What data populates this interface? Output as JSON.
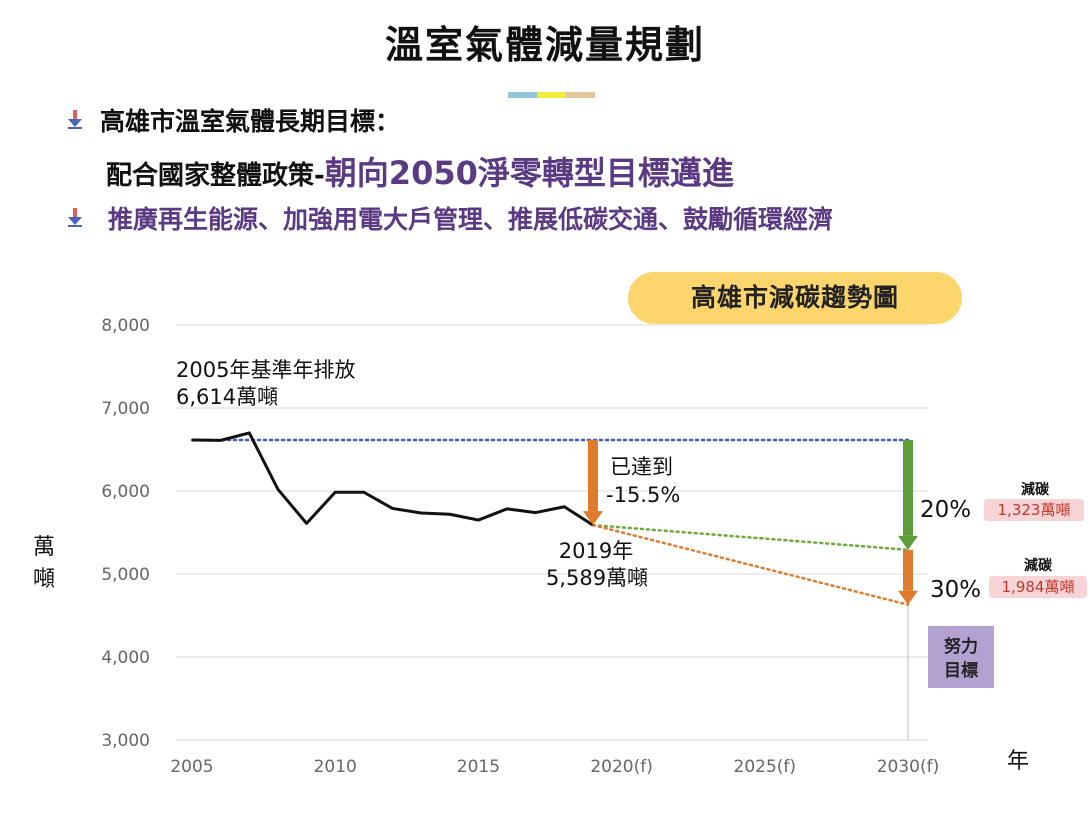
{
  "header": {
    "title": "溫室氣體減量規劃",
    "bar_colors": [
      "#93c5da",
      "#f5ec3a",
      "#e6c49d"
    ]
  },
  "bullets": {
    "line1": "高雄市溫室氣體長期目標：",
    "line2_prefix": "配合國家整體政策-",
    "line2_highlight": "朝向2050淨零轉型目標邁進",
    "line3": "推廣再生能源、加強用電大戶管理、推展低碳交通、鼓勵循環經濟",
    "icon": "down-arrow-bullet-icon"
  },
  "chart_data": {
    "type": "line",
    "title": "高雄市減碳趨勢圖",
    "ylabel": "萬\n噸",
    "ylabel_chars": [
      "萬",
      "噸"
    ],
    "xlabel": "年",
    "ylim": [
      3000,
      8000
    ],
    "yticks": [
      3000,
      4000,
      5000,
      6000,
      7000,
      8000
    ],
    "ytick_labels": [
      "3,000",
      "4,000",
      "5,000",
      "6,000",
      "7,000",
      "8,000"
    ],
    "xlim": [
      2005,
      2030
    ],
    "xticks": [
      2005,
      2010,
      2015,
      2020,
      2025,
      2030
    ],
    "xtick_labels": [
      "2005",
      "2010",
      "2015",
      "2020(f)",
      "2025(f)",
      "2030(f)"
    ],
    "grid": true,
    "series": [
      {
        "color": "#111111",
        "x": [
          2005,
          2006,
          2007,
          2008,
          2009,
          2010,
          2011,
          2012,
          2013,
          2014,
          2015,
          2016,
          2017,
          2018,
          2019
        ],
        "y": [
          6614,
          6610,
          6700,
          6020,
          5610,
          5985,
          5985,
          5790,
          5735,
          5720,
          5650,
          5785,
          5740,
          5810,
          5589
        ]
      }
    ],
    "baseline": {
      "y": 6614,
      "x": [
        2005,
        2030
      ],
      "color": "#3b5bb5"
    },
    "projections": [
      {
        "x": [
          2019,
          2030
        ],
        "y": [
          5589,
          5291
        ],
        "color": "#6aaa3a"
      },
      {
        "x": [
          2019,
          2030
        ],
        "y": [
          5589,
          4630
        ],
        "color": "#e07b2e"
      }
    ],
    "arrows": [
      {
        "x": 2019,
        "from": 6614,
        "to": 5589,
        "color": "#e07b2e"
      },
      {
        "x": 2030,
        "from": 6614,
        "to": 5291,
        "color": "#5e9e3a"
      },
      {
        "x": 2030,
        "from": 5291,
        "to": 4630,
        "color": "#e07b2e"
      }
    ],
    "annotations": {
      "base_line1": "2005年基準年排放",
      "base_line2": "6,614萬噸",
      "achieved_line1": "已達到",
      "achieved_line2": "-15.5%",
      "y2019_line1": "2019年",
      "y2019_line2": "5,589萬噸",
      "pct20": "20%",
      "pct30": "30%",
      "target_line1": "努力",
      "target_line2": "目標",
      "tag1_label": "減碳",
      "tag1_value": "1,323萬噸",
      "tag2_label": "減碳",
      "tag2_value": "1,984萬噸"
    }
  }
}
